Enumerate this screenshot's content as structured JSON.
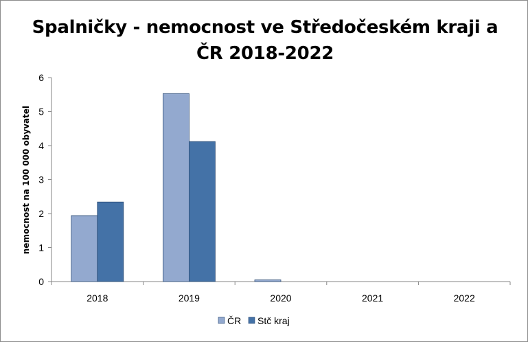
{
  "chart_data": {
    "type": "bar",
    "title": "Spalničky - nemocnost ve Středočeském kraji a ČR 2018-2022",
    "title_lines": [
      "Spalničky - nemocnost ve Středočeském kraji a",
      "ČR 2018-2022"
    ],
    "xlabel": "",
    "ylabel": "nemocnost na 100 000 obyvatel",
    "categories": [
      "2018",
      "2019",
      "2020",
      "2021",
      "2022"
    ],
    "series": [
      {
        "name": "ČR",
        "values": [
          1.94,
          5.53,
          0.05,
          0,
          0
        ],
        "color": "#93a9cf"
      },
      {
        "name": "Stč kraj",
        "values": [
          2.34,
          4.12,
          0,
          0,
          0
        ],
        "color": "#4472a7"
      }
    ],
    "ylim": [
      0,
      6
    ],
    "yticks": [
      0,
      1,
      2,
      3,
      4,
      5,
      6
    ],
    "grid": false,
    "legend": "bottom"
  }
}
